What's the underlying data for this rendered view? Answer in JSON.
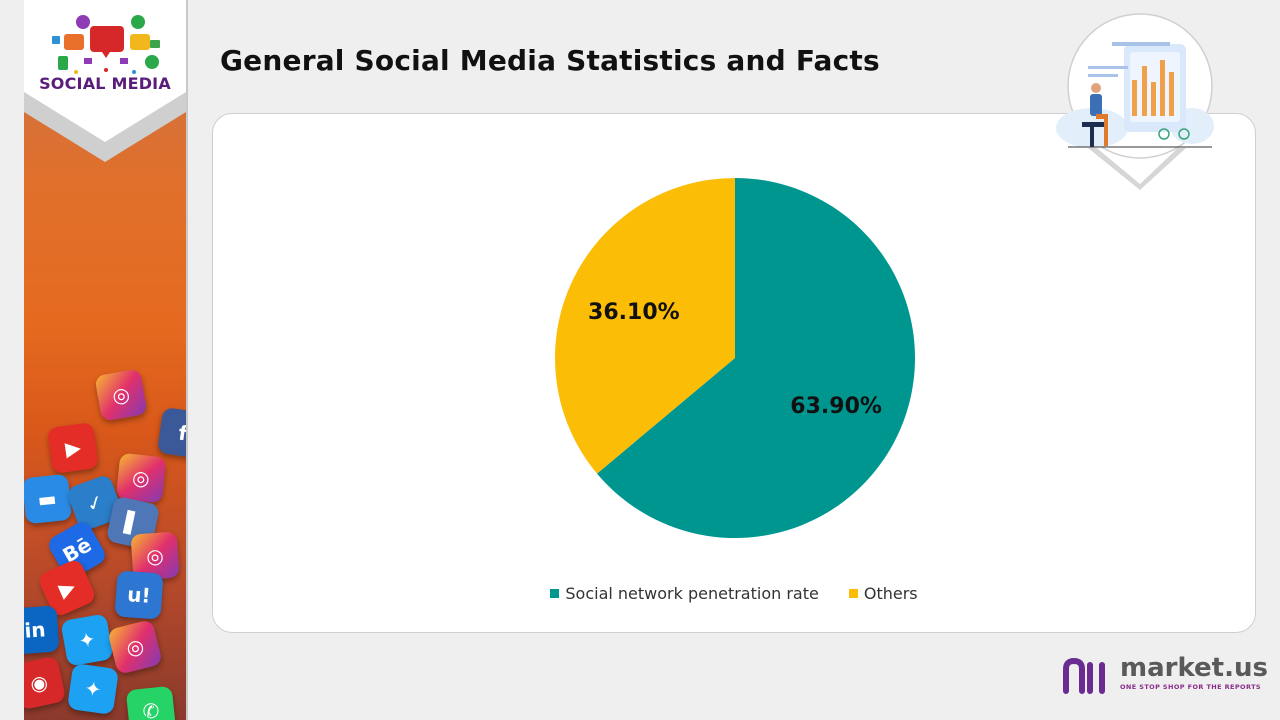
{
  "sidebar": {
    "logo_title": "SOCIAL MEDIA"
  },
  "page": {
    "title": "General Social Media Statistics and Facts"
  },
  "chart_data": {
    "type": "pie",
    "title": "",
    "categories": [
      "Social network penetration rate",
      "Others"
    ],
    "values": [
      63.9,
      36.1
    ],
    "labels": [
      "63.90%",
      "36.10%"
    ],
    "colors": [
      "#009690",
      "#fbbd06"
    ],
    "legend_position": "bottom"
  },
  "brand": {
    "name": "market.us",
    "tagline": "ONE STOP SHOP FOR THE REPORTS",
    "accent": "#6a2c91"
  },
  "icons": [
    "instagram-icon",
    "youtube-icon",
    "facebook-icon",
    "behance-icon",
    "twitter-icon",
    "linkedin-icon",
    "whatsapp-icon",
    "chart-illustration-icon"
  ]
}
